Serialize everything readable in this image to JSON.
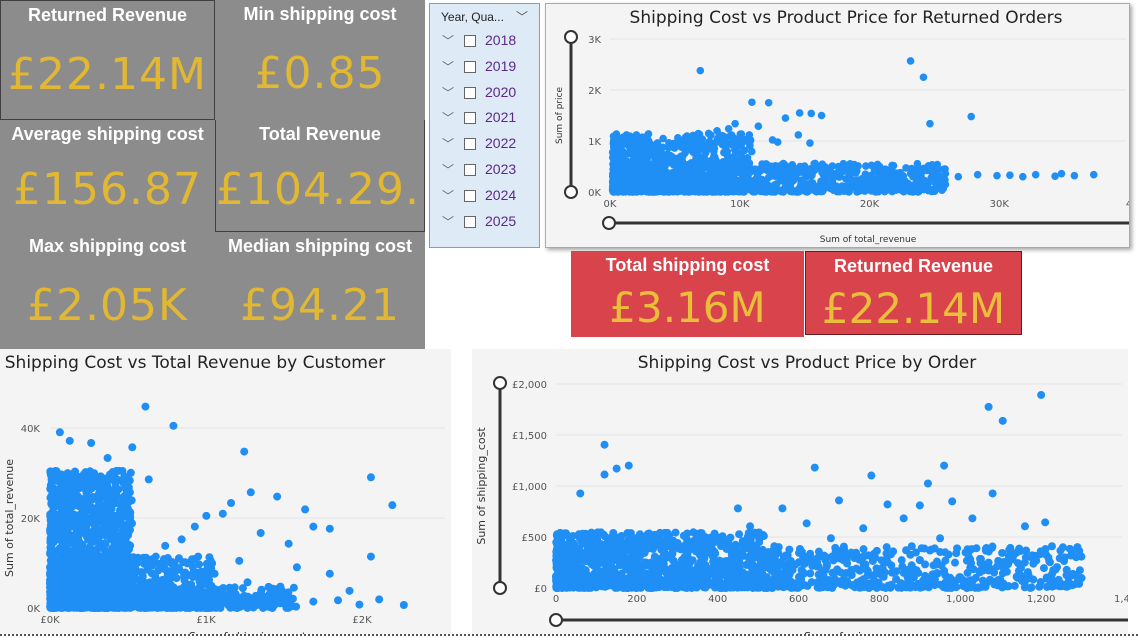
{
  "kpi_cards": [
    {
      "label": "Returned Revenue",
      "value": "£22.14M"
    },
    {
      "label": "Min shipping cost",
      "value": "£0.85"
    },
    {
      "label": "Average shipping cost",
      "value": "£156.87"
    },
    {
      "label": "Total Revenue",
      "value": "£104.29..."
    },
    {
      "label": "Max shipping cost",
      "value": "£2.05K"
    },
    {
      "label": "Median shipping cost",
      "value": "£94.21"
    }
  ],
  "red_cards": [
    {
      "label": "Total shipping cost",
      "value": "£3.16M"
    },
    {
      "label": "Returned Revenue",
      "value": "£22.14M"
    }
  ],
  "slicer": {
    "header": "Year, Qua...",
    "years": [
      "2018",
      "2019",
      "2020",
      "2021",
      "2022",
      "2023",
      "2024",
      "2025"
    ]
  },
  "colors": {
    "card_bg": "#8c8c8c",
    "card_value": "#e2b833",
    "red_card": "#d9434b",
    "point": "#1f8ff5"
  },
  "chart_data": [
    {
      "type": "scatter",
      "title": "Shipping Cost vs Product Price for Returned Orders",
      "xlabel": "Sum of total_revenue",
      "ylabel": "Sum of price",
      "xticks": [
        "0K",
        "10K",
        "20K",
        "30K",
        "4"
      ],
      "yticks": [
        "0K",
        "1K",
        "2K",
        "3K"
      ],
      "xlim": [
        0,
        40000
      ],
      "ylim": [
        0,
        3000
      ],
      "points": [
        [
          7000,
          2380
        ],
        [
          23300,
          2570
        ],
        [
          24300,
          2250
        ],
        [
          11000,
          1760
        ],
        [
          15600,
          1540
        ],
        [
          14700,
          1550
        ],
        [
          16400,
          1500
        ],
        [
          12300,
          1750
        ],
        [
          13600,
          1450
        ],
        [
          28000,
          1480
        ],
        [
          24800,
          1340
        ],
        [
          9700,
          1340
        ],
        [
          11500,
          1290
        ],
        [
          9200,
          1240
        ],
        [
          8300,
          1200
        ],
        [
          10800,
          1120
        ],
        [
          12600,
          1020
        ],
        [
          14600,
          1120
        ],
        [
          13000,
          980
        ],
        [
          15500,
          960
        ],
        [
          18500,
          380
        ],
        [
          20500,
          420
        ],
        [
          22500,
          380
        ],
        [
          26000,
          360
        ],
        [
          28500,
          340
        ],
        [
          31000,
          330
        ],
        [
          33000,
          340
        ],
        [
          35000,
          360
        ],
        [
          37500,
          340
        ],
        [
          17000,
          340
        ],
        [
          19800,
          350
        ],
        [
          22000,
          300
        ],
        [
          24000,
          320
        ],
        [
          27000,
          300
        ],
        [
          30000,
          320
        ],
        [
          32000,
          300
        ],
        [
          34500,
          310
        ],
        [
          36000,
          320
        ]
      ],
      "dense_regions": [
        {
          "x_range": [
            200,
            11000
          ],
          "y_range": [
            0,
            1150
          ],
          "count": 700
        },
        {
          "x_range": [
            200,
            26000
          ],
          "y_range": [
            0,
            560
          ],
          "count": 900
        }
      ]
    },
    {
      "type": "scatter",
      "title": "Shipping Cost vs Total Revenue by Customer",
      "xlabel": "Sum of shipping_cost",
      "ylabel": "Sum of total_revenue",
      "xticks": [
        "£0K",
        "£1K",
        "£2K"
      ],
      "yticks": [
        "0K",
        "20K",
        "40K"
      ],
      "xlim": [
        0,
        2400
      ],
      "ylim": [
        0,
        42000
      ],
      "points": [
        [
          580,
          47000
        ],
        [
          750,
          42500
        ],
        [
          1180,
          36500
        ],
        [
          1950,
          30500
        ],
        [
          2080,
          24000
        ],
        [
          1220,
          27000
        ],
        [
          1380,
          26000
        ],
        [
          1550,
          23000
        ],
        [
          1600,
          19000
        ],
        [
          1700,
          18500
        ],
        [
          1100,
          24500
        ],
        [
          1050,
          22000
        ],
        [
          950,
          21500
        ],
        [
          880,
          19000
        ],
        [
          1280,
          17500
        ],
        [
          1450,
          15000
        ],
        [
          1950,
          12000
        ],
        [
          1500,
          9500
        ],
        [
          1700,
          8000
        ],
        [
          1820,
          4000
        ],
        [
          1150,
          11000
        ],
        [
          800,
          16000
        ],
        [
          700,
          14500
        ],
        [
          900,
          12000
        ],
        [
          1000,
          8000
        ],
        [
          1200,
          6000
        ],
        [
          1400,
          5000
        ],
        [
          2000,
          2000
        ],
        [
          1880,
          800
        ],
        [
          1600,
          1500
        ],
        [
          1320,
          2400
        ],
        [
          600,
          30000
        ],
        [
          420,
          32000
        ],
        [
          350,
          35000
        ],
        [
          500,
          37500
        ],
        [
          250,
          38500
        ],
        [
          120,
          39000
        ],
        [
          60,
          41000
        ],
        [
          1750,
          1800
        ],
        [
          2150,
          700
        ]
      ],
      "dense_regions": [
        {
          "x_range": [
            0,
            500
          ],
          "y_range": [
            0,
            32000
          ],
          "count": 1200
        },
        {
          "x_range": [
            0,
            1000
          ],
          "y_range": [
            0,
            12000
          ],
          "count": 700
        },
        {
          "x_range": [
            500,
            1500
          ],
          "y_range": [
            0,
            5000
          ],
          "count": 300
        }
      ]
    },
    {
      "type": "scatter",
      "title": "Shipping Cost vs Product Price by Order",
      "xlabel": "Sum of price",
      "ylabel": "Sum of shipping_cost",
      "xticks": [
        "0",
        "200",
        "400",
        "600",
        "800",
        "1,000",
        "1,200",
        "1,4"
      ],
      "yticks": [
        "£0",
        "£500",
        "£1,000",
        "£1,500",
        "£2,000"
      ],
      "xlim": [
        0,
        1400
      ],
      "ylim": [
        0,
        2050
      ],
      "points": [
        [
          1200,
          1940
        ],
        [
          1070,
          1820
        ],
        [
          1105,
          1680
        ],
        [
          120,
          1440
        ],
        [
          960,
          1230
        ],
        [
          640,
          1210
        ],
        [
          150,
          1200
        ],
        [
          180,
          1230
        ],
        [
          120,
          1140
        ],
        [
          60,
          950
        ],
        [
          1080,
          950
        ],
        [
          980,
          870
        ],
        [
          900,
          830
        ],
        [
          780,
          1130
        ],
        [
          820,
          840
        ],
        [
          920,
          1050
        ],
        [
          700,
          880
        ],
        [
          560,
          800
        ],
        [
          450,
          800
        ],
        [
          1300,
          100
        ],
        [
          1230,
          180
        ],
        [
          1180,
          300
        ],
        [
          1160,
          620
        ],
        [
          1210,
          660
        ],
        [
          1030,
          700
        ],
        [
          1040,
          400
        ],
        [
          950,
          500
        ],
        [
          880,
          420
        ],
        [
          860,
          700
        ],
        [
          760,
          600
        ],
        [
          680,
          500
        ],
        [
          620,
          650
        ],
        [
          540,
          420
        ],
        [
          480,
          620
        ],
        [
          820,
          320
        ],
        [
          900,
          280
        ],
        [
          1050,
          250
        ],
        [
          1120,
          320
        ],
        [
          1150,
          200
        ],
        [
          990,
          350
        ]
      ],
      "dense_regions": [
        {
          "x_range": [
            0,
            520
          ],
          "y_range": [
            0,
            560
          ],
          "count": 1100
        },
        {
          "x_range": [
            520,
            1300
          ],
          "y_range": [
            0,
            420
          ],
          "count": 500
        }
      ]
    }
  ]
}
